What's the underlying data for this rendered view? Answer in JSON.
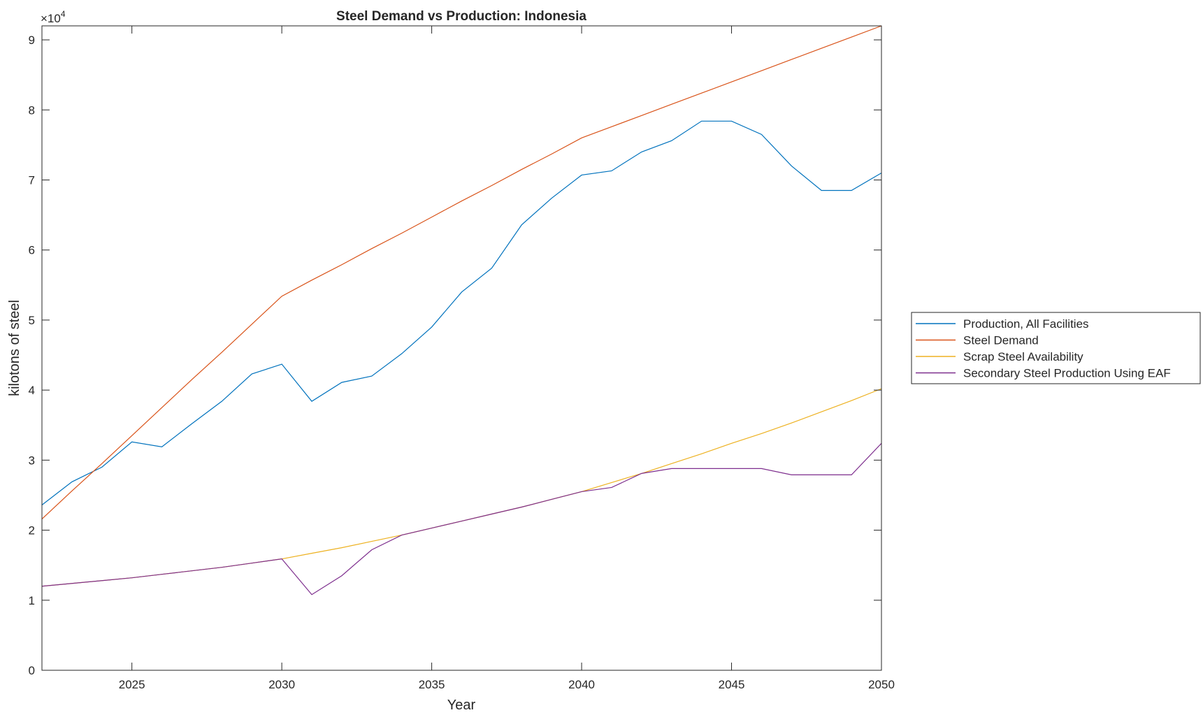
{
  "chart_data": {
    "type": "line",
    "title": "Steel Demand vs Production: Indonesia",
    "xlabel": "Year",
    "ylabel": "kilotons of steel",
    "y_exponent_label": "×10",
    "y_exponent": "4",
    "xlim": [
      2022,
      2050
    ],
    "ylim": [
      0,
      92000
    ],
    "x_ticks": [
      2025,
      2030,
      2035,
      2040,
      2045,
      2050
    ],
    "y_ticks": [
      0,
      10000,
      20000,
      30000,
      40000,
      50000,
      60000,
      70000,
      80000,
      90000
    ],
    "y_tick_labels": [
      "0",
      "1",
      "2",
      "3",
      "4",
      "5",
      "6",
      "7",
      "8",
      "9"
    ],
    "grid": false,
    "legend_position": "outside-right",
    "x": [
      2022,
      2023,
      2024,
      2025,
      2026,
      2027,
      2028,
      2029,
      2030,
      2031,
      2032,
      2033,
      2034,
      2035,
      2036,
      2037,
      2038,
      2039,
      2040,
      2041,
      2042,
      2043,
      2044,
      2045,
      2046,
      2047,
      2048,
      2049,
      2050
    ],
    "series": [
      {
        "name": "Production, All Facilities",
        "color": "#0072BD",
        "values": [
          23600,
          26900,
          29000,
          32600,
          31900,
          35200,
          38400,
          42300,
          43700,
          38400,
          41100,
          42000,
          45200,
          49000,
          54000,
          57400,
          63600,
          67400,
          70700,
          71300,
          74000,
          75600,
          78400,
          78400,
          76500,
          72000,
          68500,
          68500,
          71000
        ]
      },
      {
        "name": "Steel Demand",
        "color": "#D95319",
        "values": [
          21600,
          25600,
          29500,
          33500,
          37500,
          41500,
          45400,
          49400,
          53400,
          55700,
          57900,
          60200,
          62400,
          64700,
          67000,
          69200,
          71500,
          73700,
          76000,
          77600,
          79200,
          80800,
          82400,
          84000,
          85600,
          87200,
          88800,
          90400,
          92000
        ]
      },
      {
        "name": "Scrap Steel Availability",
        "color": "#EDB120",
        "values": [
          12000,
          12400,
          12800,
          13200,
          13700,
          14200,
          14700,
          15300,
          15900,
          16700,
          17500,
          18400,
          19300,
          20300,
          21300,
          22300,
          23300,
          24400,
          25500,
          26800,
          28100,
          29500,
          30900,
          32400,
          33800,
          35300,
          36900,
          38500,
          40200
        ]
      },
      {
        "name": "Secondary Steel Production Using EAF",
        "color": "#7E2F8E",
        "values": [
          12000,
          12400,
          12800,
          13200,
          13700,
          14200,
          14700,
          15300,
          15900,
          10800,
          13500,
          17200,
          19300,
          20300,
          21300,
          22300,
          23300,
          24400,
          25500,
          26100,
          28100,
          28800,
          28800,
          28800,
          28800,
          27900,
          27900,
          27900,
          32400
        ]
      }
    ]
  }
}
